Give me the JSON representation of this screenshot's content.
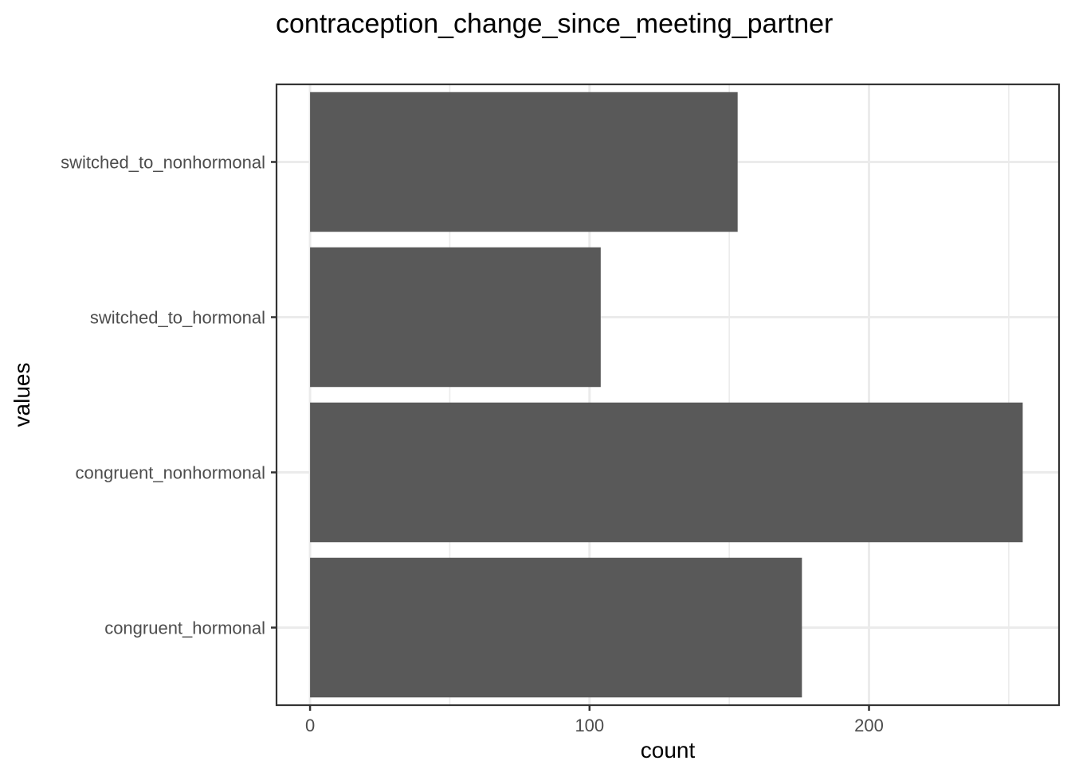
{
  "chart_data": {
    "type": "bar",
    "orientation": "horizontal",
    "title": "contraception_change_since_meeting_partner",
    "xlabel": "count",
    "ylabel": "values",
    "categories": [
      "congruent_hormonal",
      "congruent_nonhormonal",
      "switched_to_hormonal",
      "switched_to_nonhormonal"
    ],
    "values": [
      176,
      255,
      104,
      153
    ],
    "xlim": [
      -12,
      268
    ],
    "x_ticks": [
      0,
      100,
      200
    ],
    "x_tick_labels": [
      "0",
      "100",
      "200"
    ],
    "grid": true,
    "legend": "none",
    "bar_color": "#595959",
    "grid_color": "#ebebeb",
    "panel_border_color": "#333333"
  }
}
